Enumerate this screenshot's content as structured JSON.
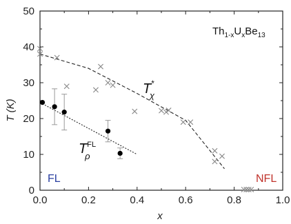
{
  "chart_data": {
    "type": "scatter",
    "xlabel": "x",
    "ylabel": "T (K)",
    "xlim": [
      0.0,
      1.0
    ],
    "ylim": [
      0,
      50
    ],
    "x_ticks": [
      "0.0",
      "0.2",
      "0.4",
      "0.6",
      "0.8",
      "1.0"
    ],
    "y_ticks": [
      "0",
      "10",
      "20",
      "30",
      "40",
      "50"
    ],
    "grid": false,
    "series": [
      {
        "name": "T*_χ",
        "marker": "cross",
        "color": "#888888",
        "points": [
          {
            "x": 0.0,
            "y": 39.5
          },
          {
            "x": 0.0,
            "y": 38.0
          },
          {
            "x": 0.07,
            "y": 37.0
          },
          {
            "x": 0.11,
            "y": 29.0
          },
          {
            "x": 0.23,
            "y": 28.0
          },
          {
            "x": 0.25,
            "y": 34.5
          },
          {
            "x": 0.28,
            "y": 30.0
          },
          {
            "x": 0.3,
            "y": 29.3
          },
          {
            "x": 0.39,
            "y": 22.0
          },
          {
            "x": 0.5,
            "y": 22.2
          },
          {
            "x": 0.52,
            "y": 21.8
          },
          {
            "x": 0.53,
            "y": 22.3
          },
          {
            "x": 0.59,
            "y": 19.0
          },
          {
            "x": 0.62,
            "y": 19.0
          },
          {
            "x": 0.72,
            "y": 11.0
          },
          {
            "x": 0.72,
            "y": 8.0
          },
          {
            "x": 0.75,
            "y": 9.5
          },
          {
            "x": 0.84,
            "y": 0.2
          },
          {
            "x": 0.85,
            "y": 0.2
          },
          {
            "x": 0.86,
            "y": 0.2
          },
          {
            "x": 0.87,
            "y": 0.2
          }
        ],
        "fit": [
          {
            "x": 0.0,
            "y": 38.0
          },
          {
            "x": 0.2,
            "y": 34.0
          },
          {
            "x": 0.4,
            "y": 27.0
          },
          {
            "x": 0.6,
            "y": 19.5
          },
          {
            "x": 0.76,
            "y": 6.0
          }
        ]
      },
      {
        "name": "T^FL_ρ",
        "marker": "filled-circle",
        "color": "#000000",
        "points": [
          {
            "x": 0.01,
            "y": 24.5,
            "err": 0
          },
          {
            "x": 0.06,
            "y": 23.3,
            "err": 5.0
          },
          {
            "x": 0.1,
            "y": 21.8,
            "err": 5.0
          },
          {
            "x": 0.28,
            "y": 16.5,
            "err": 3.0
          },
          {
            "x": 0.33,
            "y": 10.3,
            "err": 1.5
          }
        ],
        "fit": [
          {
            "x": 0.0,
            "y": 24.5
          },
          {
            "x": 0.4,
            "y": 10.0
          }
        ]
      }
    ],
    "annotations": {
      "compound": {
        "base": "Th",
        "sub1": "1-x",
        "mid": "U",
        "sub2": "x",
        "tail": "Be",
        "sub3": "13"
      },
      "t_star_label": {
        "base": "T",
        "sup": "*",
        "sub": "χ"
      },
      "t_fl_label": {
        "base": "T",
        "sup": "FL",
        "sub": "ρ"
      },
      "fl_region": {
        "text": "FL",
        "color": "#2a3fa0"
      },
      "nfl_region": {
        "text": "NFL",
        "color": "#c0322b"
      }
    }
  }
}
